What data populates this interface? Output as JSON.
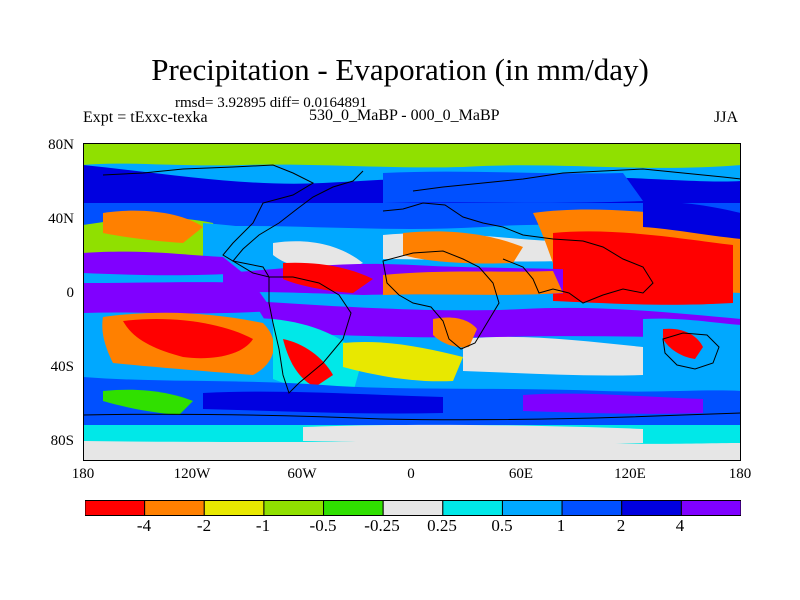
{
  "title": "Precipitation - Evaporation (in mm/day)",
  "stats": "rmsd= 3.92895 diff= 0.0164891",
  "left_label": "Expt = tExxc-texka",
  "center_label": "530_0_MaBP - 000_0_MaBP",
  "right_label": "JJA",
  "y_ticks": [
    "80N",
    "40N",
    "0",
    "40S",
    "80S"
  ],
  "x_ticks": [
    "180",
    "120W",
    "60W",
    "0",
    "60E",
    "120E",
    "180"
  ],
  "colorbar": {
    "labels": [
      "-4",
      "-2",
      "-1",
      "-0.5",
      "-0.25",
      "0.25",
      "0.5",
      "1",
      "2",
      "4"
    ],
    "colors": [
      "#ff0000",
      "#ff8000",
      "#e8e800",
      "#90e000",
      "#30e000",
      "#e6e6e6",
      "#00e8e8",
      "#00a8ff",
      "#0050ff",
      "#0000e0",
      "#8000ff"
    ]
  }
}
